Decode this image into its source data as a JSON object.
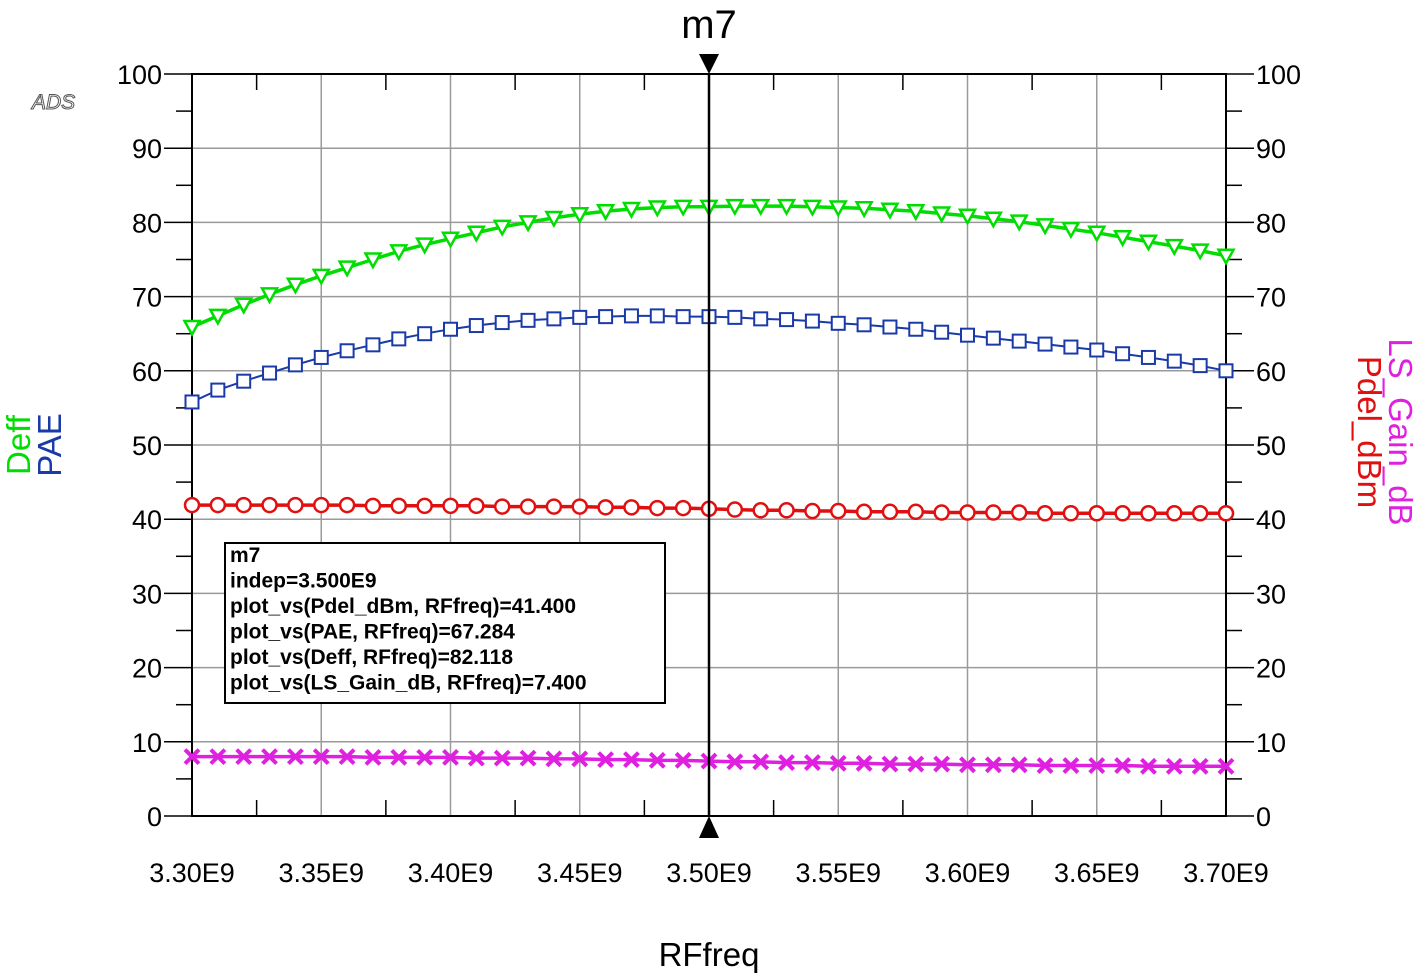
{
  "watermark": "ADS",
  "marker": {
    "name": "m7",
    "x": 3500000000.0,
    "readout": [
      "m7",
      "indep=3.500E9",
      "plot_vs(Pdel_dBm, RFfreq)=41.400",
      "plot_vs(PAE, RFfreq)=67.284",
      "plot_vs(Deff, RFfreq)=82.118",
      "plot_vs(LS_Gain_dB, RFfreq)=7.400"
    ]
  },
  "chart_data": {
    "type": "line",
    "xlabel": "RFfreq",
    "ylabel_left": [
      "Deff",
      "PAE"
    ],
    "ylabel_right": [
      "LS_Gain_dB",
      "Pdel_dBm"
    ],
    "xlim": [
      3300000000.0,
      3700000000.0
    ],
    "ylim": [
      0,
      100
    ],
    "grid": true,
    "x_tick_labels": [
      "3.30E9",
      "3.35E9",
      "3.40E9",
      "3.45E9",
      "3.50E9",
      "3.55E9",
      "3.60E9",
      "3.65E9",
      "3.70E9"
    ],
    "y_tick_labels": [
      "0",
      "10",
      "20",
      "30",
      "40",
      "50",
      "60",
      "70",
      "80",
      "90",
      "100"
    ],
    "x": [
      3300000000.0,
      3310000000.0,
      3320000000.0,
      3330000000.0,
      3340000000.0,
      3350000000.0,
      3360000000.0,
      3370000000.0,
      3380000000.0,
      3390000000.0,
      3400000000.0,
      3410000000.0,
      3420000000.0,
      3430000000.0,
      3440000000.0,
      3450000000.0,
      3460000000.0,
      3470000000.0,
      3480000000.0,
      3490000000.0,
      3500000000.0,
      3510000000.0,
      3520000000.0,
      3530000000.0,
      3540000000.0,
      3550000000.0,
      3560000000.0,
      3570000000.0,
      3580000000.0,
      3590000000.0,
      3600000000.0,
      3610000000.0,
      3620000000.0,
      3630000000.0,
      3640000000.0,
      3650000000.0,
      3660000000.0,
      3670000000.0,
      3680000000.0,
      3690000000.0,
      3700000000.0
    ],
    "series": [
      {
        "name": "Deff",
        "axis": "left",
        "color": "#00dd00",
        "marker": "triangle-down",
        "values": [
          65.9,
          67.4,
          68.9,
          70.3,
          71.6,
          72.8,
          73.9,
          75.0,
          76.1,
          77.0,
          77.8,
          78.6,
          79.4,
          80.0,
          80.6,
          81.1,
          81.5,
          81.8,
          82.0,
          82.1,
          82.1,
          82.2,
          82.2,
          82.2,
          82.1,
          82.0,
          81.9,
          81.7,
          81.5,
          81.2,
          80.9,
          80.5,
          80.1,
          79.6,
          79.1,
          78.6,
          78.0,
          77.4,
          76.8,
          76.2,
          75.5
        ]
      },
      {
        "name": "PAE",
        "axis": "left",
        "color": "#1a3aa8",
        "marker": "square",
        "values": [
          55.8,
          57.4,
          58.6,
          59.7,
          60.8,
          61.8,
          62.7,
          63.5,
          64.3,
          65.0,
          65.6,
          66.1,
          66.5,
          66.8,
          67.0,
          67.2,
          67.3,
          67.4,
          67.4,
          67.3,
          67.3,
          67.2,
          67.0,
          66.9,
          66.7,
          66.4,
          66.2,
          65.9,
          65.6,
          65.2,
          64.8,
          64.4,
          64.0,
          63.6,
          63.2,
          62.8,
          62.3,
          61.8,
          61.3,
          60.7,
          60.0
        ]
      },
      {
        "name": "Pdel_dBm",
        "axis": "right",
        "color": "#e01010",
        "marker": "circle",
        "values": [
          41.9,
          41.9,
          41.9,
          41.9,
          41.9,
          41.9,
          41.9,
          41.8,
          41.8,
          41.8,
          41.8,
          41.8,
          41.7,
          41.7,
          41.7,
          41.7,
          41.6,
          41.6,
          41.5,
          41.5,
          41.4,
          41.3,
          41.2,
          41.2,
          41.1,
          41.1,
          41.0,
          41.0,
          41.0,
          40.9,
          40.9,
          40.9,
          40.9,
          40.8,
          40.8,
          40.8,
          40.8,
          40.8,
          40.8,
          40.8,
          40.8
        ]
      },
      {
        "name": "LS_Gain_dB",
        "axis": "right",
        "color": "#e020e0",
        "marker": "x",
        "values": [
          8.0,
          8.0,
          8.0,
          8.0,
          8.0,
          8.0,
          8.0,
          7.9,
          7.9,
          7.9,
          7.9,
          7.8,
          7.8,
          7.8,
          7.7,
          7.7,
          7.6,
          7.6,
          7.5,
          7.5,
          7.4,
          7.3,
          7.3,
          7.2,
          7.2,
          7.1,
          7.1,
          7.0,
          7.0,
          7.0,
          6.9,
          6.9,
          6.9,
          6.8,
          6.8,
          6.8,
          6.8,
          6.7,
          6.7,
          6.7,
          6.7
        ]
      }
    ]
  }
}
